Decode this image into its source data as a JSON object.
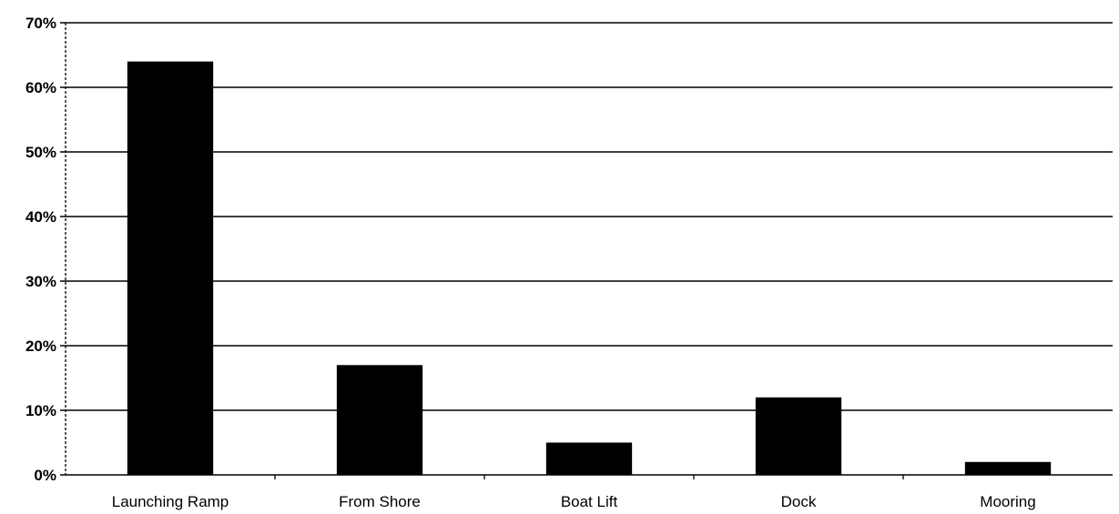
{
  "chart_data": {
    "type": "bar",
    "title": "",
    "xlabel": "",
    "ylabel": "",
    "categories": [
      "Launching Ramp",
      "From Shore",
      "Boat Lift",
      "Dock",
      "Mooring"
    ],
    "values": [
      64,
      17,
      5,
      12,
      2
    ],
    "ylim": [
      0,
      70
    ],
    "y_ticks": [
      0,
      10,
      20,
      30,
      40,
      50,
      60,
      70
    ],
    "y_tick_format": "{v}%",
    "grid": true,
    "legend": "none",
    "bar_color": "#000000"
  }
}
